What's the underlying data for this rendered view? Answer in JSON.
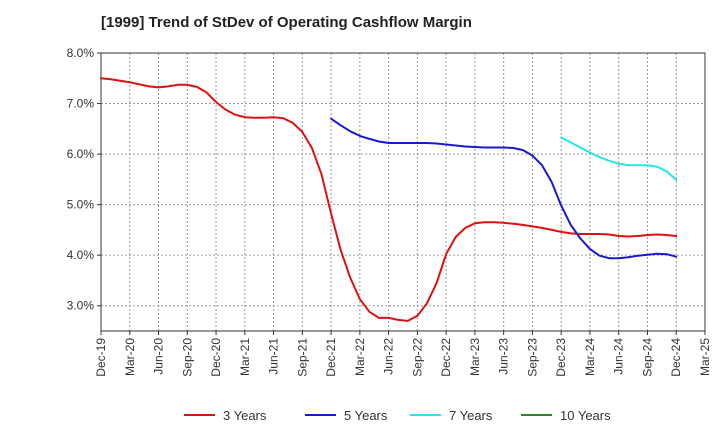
{
  "chart_data": {
    "type": "line",
    "title": "[1999]  Trend of StDev of Operating Cashflow Margin",
    "xlabel": "",
    "ylabel": "",
    "ylim": [
      2.5,
      8.0
    ],
    "yticks": [
      3.0,
      4.0,
      5.0,
      6.0,
      7.0,
      8.0
    ],
    "ytick_labels": [
      "3.0%",
      "4.0%",
      "5.0%",
      "6.0%",
      "7.0%",
      "8.0%"
    ],
    "xtick_labels": [
      "Dec-19",
      "Mar-20",
      "Jun-20",
      "Sep-20",
      "Dec-20",
      "Mar-21",
      "Jun-21",
      "Sep-21",
      "Dec-21",
      "Mar-22",
      "Jun-22",
      "Sep-22",
      "Dec-22",
      "Mar-23",
      "Jun-23",
      "Sep-23",
      "Dec-23",
      "Mar-24",
      "Jun-24",
      "Sep-24",
      "Dec-24",
      "Mar-25"
    ],
    "grid": true,
    "legend_position": "bottom",
    "series": [
      {
        "name": "3 Years",
        "color": "#dd1111",
        "x": [
          "Dec-19",
          "Jan-20",
          "Feb-20",
          "Mar-20",
          "Apr-20",
          "May-20",
          "Jun-20",
          "Jul-20",
          "Aug-20",
          "Sep-20",
          "Oct-20",
          "Nov-20",
          "Dec-20",
          "Jan-21",
          "Feb-21",
          "Mar-21",
          "Apr-21",
          "May-21",
          "Jun-21",
          "Jul-21",
          "Aug-21",
          "Sep-21",
          "Oct-21",
          "Nov-21",
          "Dec-21",
          "Jan-22",
          "Feb-22",
          "Mar-22",
          "Apr-22",
          "May-22",
          "Jun-22",
          "Jul-22",
          "Aug-22",
          "Sep-22",
          "Oct-22",
          "Nov-22",
          "Dec-22",
          "Jan-23",
          "Feb-23",
          "Mar-23",
          "Apr-23",
          "May-23",
          "Jun-23",
          "Jul-23",
          "Aug-23",
          "Sep-23",
          "Oct-23",
          "Nov-23",
          "Dec-23",
          "Jan-24",
          "Feb-24",
          "Mar-24",
          "Apr-24",
          "May-24",
          "Jun-24",
          "Jul-24",
          "Aug-24",
          "Sep-24",
          "Oct-24",
          "Nov-24",
          "Dec-24"
        ],
        "values": [
          7.5,
          7.48,
          7.45,
          7.42,
          7.38,
          7.34,
          7.32,
          7.34,
          7.37,
          7.37,
          7.33,
          7.22,
          7.03,
          6.88,
          6.78,
          6.73,
          6.72,
          6.72,
          6.73,
          6.71,
          6.62,
          6.44,
          6.12,
          5.6,
          4.82,
          4.1,
          3.55,
          3.13,
          2.88,
          2.76,
          2.76,
          2.72,
          2.7,
          2.8,
          3.05,
          3.45,
          4.02,
          4.36,
          4.54,
          4.63,
          4.65,
          4.65,
          4.64,
          4.62,
          4.6,
          4.57,
          4.54,
          4.5,
          4.46,
          4.43,
          4.42,
          4.42,
          4.42,
          4.41,
          4.38,
          4.37,
          4.38,
          4.4,
          4.41,
          4.4,
          4.38
        ]
      },
      {
        "name": "5 Years",
        "color": "#1a1acc",
        "x": [
          "Dec-21",
          "Jan-22",
          "Feb-22",
          "Mar-22",
          "Apr-22",
          "May-22",
          "Jun-22",
          "Jul-22",
          "Aug-22",
          "Sep-22",
          "Oct-22",
          "Nov-22",
          "Dec-22",
          "Jan-23",
          "Feb-23",
          "Mar-23",
          "Apr-23",
          "May-23",
          "Jun-23",
          "Jul-23",
          "Aug-23",
          "Sep-23",
          "Oct-23",
          "Nov-23",
          "Dec-23",
          "Jan-24",
          "Feb-24",
          "Mar-24",
          "Apr-24",
          "May-24",
          "Jun-24",
          "Jul-24",
          "Aug-24",
          "Sep-24",
          "Oct-24",
          "Nov-24",
          "Dec-24"
        ],
        "values": [
          6.7,
          6.57,
          6.45,
          6.36,
          6.3,
          6.25,
          6.22,
          6.22,
          6.22,
          6.22,
          6.22,
          6.21,
          6.19,
          6.17,
          6.15,
          6.14,
          6.13,
          6.13,
          6.13,
          6.12,
          6.08,
          5.97,
          5.78,
          5.45,
          4.98,
          4.6,
          4.33,
          4.12,
          3.99,
          3.94,
          3.94,
          3.96,
          3.99,
          4.01,
          4.03,
          4.02,
          3.97
        ]
      },
      {
        "name": "7 Years",
        "color": "#22e5ee",
        "x": [
          "Dec-23",
          "Jan-24",
          "Feb-24",
          "Mar-24",
          "Apr-24",
          "May-24",
          "Jun-24",
          "Jul-24",
          "Aug-24",
          "Sep-24",
          "Oct-24",
          "Nov-24",
          "Dec-24"
        ],
        "values": [
          6.33,
          6.23,
          6.13,
          6.03,
          5.94,
          5.87,
          5.81,
          5.78,
          5.78,
          5.78,
          5.75,
          5.66,
          5.49
        ]
      },
      {
        "name": "10 Years",
        "color": "#2a8a2a",
        "x": [],
        "values": []
      }
    ]
  }
}
